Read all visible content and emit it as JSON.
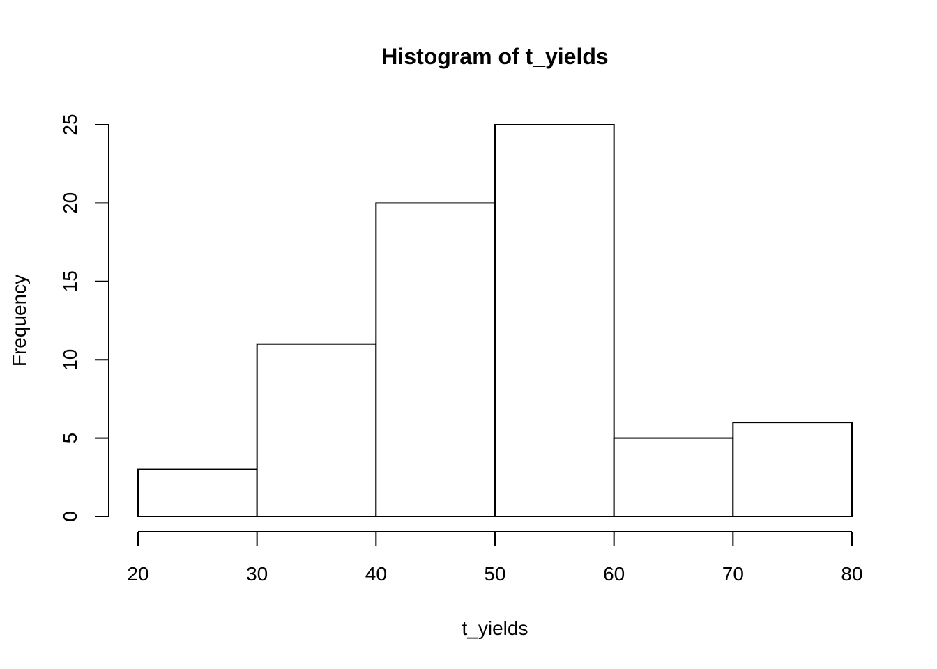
{
  "chart_data": {
    "type": "bar",
    "title": "Histogram of t_yields",
    "xlabel": "t_yields",
    "ylabel": "Frequency",
    "bins": [
      {
        "start": 20,
        "end": 30,
        "count": 3
      },
      {
        "start": 30,
        "end": 40,
        "count": 11
      },
      {
        "start": 40,
        "end": 50,
        "count": 20
      },
      {
        "start": 50,
        "end": 60,
        "count": 25
      },
      {
        "start": 60,
        "end": 70,
        "count": 5
      },
      {
        "start": 70,
        "end": 80,
        "count": 6
      }
    ],
    "xlim": [
      20,
      80
    ],
    "ylim": [
      0,
      25
    ],
    "x_ticks": [
      "20",
      "30",
      "40",
      "50",
      "60",
      "70",
      "80"
    ],
    "y_ticks": [
      "0",
      "5",
      "10",
      "15",
      "20",
      "25"
    ],
    "grid": false,
    "bar_fill": "#ffffff",
    "bar_stroke": "#000000"
  }
}
